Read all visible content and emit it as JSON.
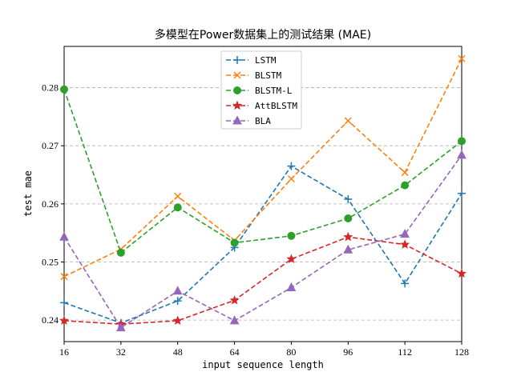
{
  "chart_data": {
    "type": "line",
    "title": "多模型在Power数据集上的测试结果 (MAE)",
    "xlabel": "input sequence length",
    "ylabel": "test mae",
    "x": [
      16,
      32,
      48,
      64,
      80,
      96,
      112,
      128
    ],
    "x_ticks": [
      "16",
      "32",
      "48",
      "64",
      "80",
      "96",
      "112",
      "128"
    ],
    "xlim": [
      16,
      128
    ],
    "y_ticks": [
      0.24,
      0.25,
      0.26,
      0.27,
      0.28
    ],
    "y_tick_labels": [
      "0.24",
      "0.25",
      "0.26",
      "0.27",
      "0.28"
    ],
    "ylim": [
      0.2363,
      0.2871
    ],
    "grid": "horizontal dashed",
    "legend_position": "top-center",
    "series": [
      {
        "name": "LSTM",
        "color": "#1f77b4",
        "marker": "plus",
        "values": [
          0.243,
          0.2395,
          0.2433,
          0.2525,
          0.2665,
          0.2608,
          0.2463,
          0.2618
        ]
      },
      {
        "name": "BLSTM",
        "color": "#ff7f0e",
        "marker": "x",
        "values": [
          0.2475,
          0.2522,
          0.2613,
          0.2537,
          0.2643,
          0.2743,
          0.2654,
          0.285
        ]
      },
      {
        "name": "BLSTM-L",
        "color": "#2ca02c",
        "marker": "circle",
        "values": [
          0.2797,
          0.2516,
          0.2594,
          0.2533,
          0.2545,
          0.2575,
          0.2632,
          0.2708
        ]
      },
      {
        "name": "AttBLSTM",
        "color": "#d62728",
        "marker": "star",
        "values": [
          0.2399,
          0.2393,
          0.2399,
          0.2434,
          0.2505,
          0.2543,
          0.253,
          0.248
        ]
      },
      {
        "name": "BLA",
        "color": "#9467bd",
        "marker": "triangle",
        "values": [
          0.2543,
          0.2387,
          0.245,
          0.2399,
          0.2456,
          0.2521,
          0.2548,
          0.2684
        ]
      }
    ]
  }
}
